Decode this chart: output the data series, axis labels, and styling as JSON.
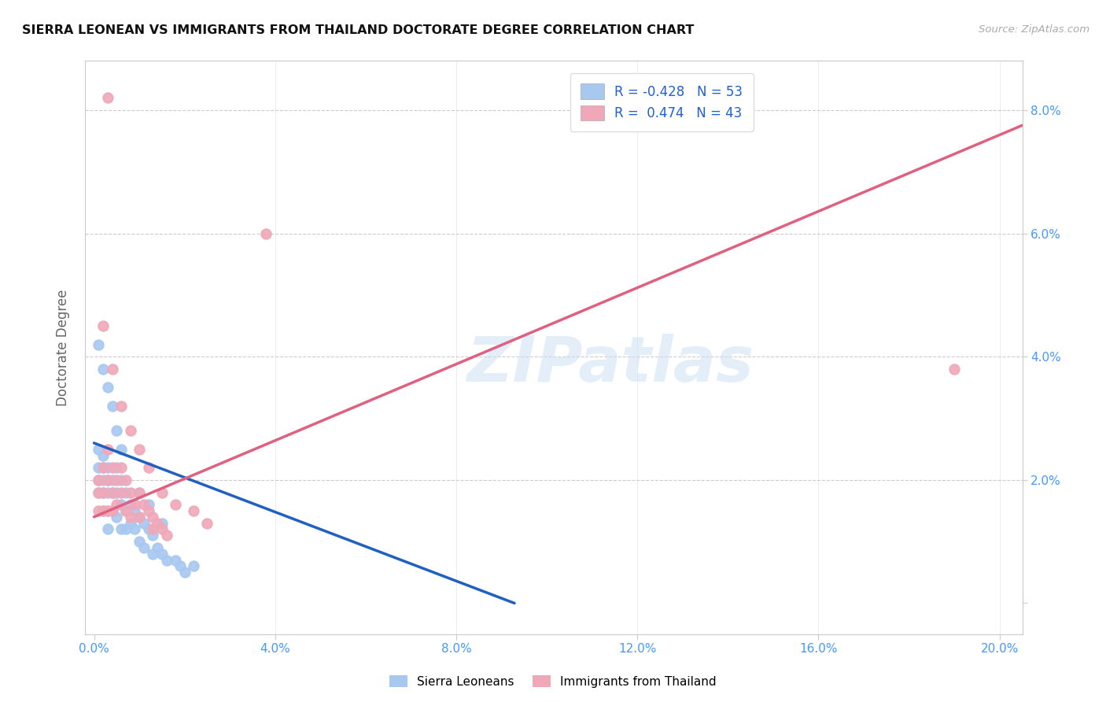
{
  "title": "SIERRA LEONEAN VS IMMIGRANTS FROM THAILAND DOCTORATE DEGREE CORRELATION CHART",
  "source": "Source: ZipAtlas.com",
  "xlim": [
    -0.002,
    0.205
  ],
  "ylim": [
    -0.005,
    0.088
  ],
  "ylabel": "Doctorate Degree",
  "blue_color": "#a8c8f0",
  "pink_color": "#f0a8b8",
  "blue_line_color": "#2060c0",
  "pink_line_color": "#e06080",
  "watermark": "ZIPatlas",
  "blue_R": "-0.428",
  "blue_N": "53",
  "pink_R": "0.474",
  "pink_N": "43",
  "blue_trend_intercept": 0.026,
  "blue_trend_slope": -0.28,
  "pink_trend_intercept": 0.014,
  "pink_trend_slope": 0.31,
  "blue_x": [
    0.001,
    0.001,
    0.001,
    0.001,
    0.002,
    0.002,
    0.002,
    0.002,
    0.002,
    0.003,
    0.003,
    0.003,
    0.003,
    0.003,
    0.004,
    0.004,
    0.004,
    0.005,
    0.005,
    0.005,
    0.006,
    0.006,
    0.006,
    0.007,
    0.007,
    0.007,
    0.008,
    0.008,
    0.009,
    0.009,
    0.01,
    0.01,
    0.011,
    0.011,
    0.012,
    0.013,
    0.013,
    0.014,
    0.015,
    0.016,
    0.018,
    0.019,
    0.02,
    0.022,
    0.001,
    0.002,
    0.003,
    0.004,
    0.005,
    0.006,
    0.01,
    0.012,
    0.015
  ],
  "blue_y": [
    0.025,
    0.022,
    0.02,
    0.018,
    0.024,
    0.022,
    0.02,
    0.018,
    0.015,
    0.022,
    0.02,
    0.018,
    0.015,
    0.012,
    0.02,
    0.018,
    0.015,
    0.022,
    0.018,
    0.014,
    0.02,
    0.016,
    0.012,
    0.018,
    0.015,
    0.012,
    0.016,
    0.013,
    0.015,
    0.012,
    0.014,
    0.01,
    0.013,
    0.009,
    0.012,
    0.011,
    0.008,
    0.009,
    0.008,
    0.007,
    0.007,
    0.006,
    0.005,
    0.006,
    0.042,
    0.038,
    0.035,
    0.032,
    0.028,
    0.025,
    0.018,
    0.016,
    0.013
  ],
  "pink_x": [
    0.001,
    0.001,
    0.001,
    0.002,
    0.002,
    0.002,
    0.003,
    0.003,
    0.003,
    0.004,
    0.004,
    0.004,
    0.005,
    0.005,
    0.006,
    0.006,
    0.007,
    0.007,
    0.008,
    0.008,
    0.009,
    0.01,
    0.01,
    0.011,
    0.012,
    0.013,
    0.013,
    0.014,
    0.015,
    0.016,
    0.002,
    0.004,
    0.006,
    0.008,
    0.01,
    0.012,
    0.015,
    0.018,
    0.022,
    0.025,
    0.19,
    0.038,
    0.003
  ],
  "pink_y": [
    0.02,
    0.018,
    0.015,
    0.022,
    0.018,
    0.015,
    0.025,
    0.02,
    0.015,
    0.022,
    0.018,
    0.015,
    0.02,
    0.016,
    0.022,
    0.018,
    0.02,
    0.015,
    0.018,
    0.014,
    0.016,
    0.018,
    0.014,
    0.016,
    0.015,
    0.014,
    0.012,
    0.013,
    0.012,
    0.011,
    0.045,
    0.038,
    0.032,
    0.028,
    0.025,
    0.022,
    0.018,
    0.016,
    0.015,
    0.013,
    0.038,
    0.06,
    0.082
  ]
}
